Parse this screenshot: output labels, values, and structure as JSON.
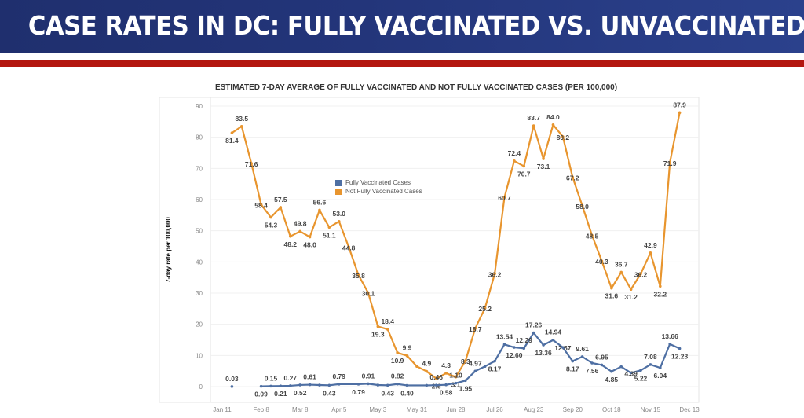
{
  "banner": {
    "title": "CASE RATES IN DC: FULLY VACCINATED VS. UNVACCINATED",
    "colors": {
      "banner": "#23357a",
      "stripe": "#b3160f"
    }
  },
  "chart_data": {
    "type": "line",
    "title": "ESTIMATED 7-DAY AVERAGE OF FULLY VACCINATED AND NOT FULLY VACCINATED CASES (PER 100,000)",
    "xlabel": "",
    "ylabel": "7-day rate per 100,000",
    "ylim": [
      0,
      90
    ],
    "yticks": [
      0,
      10,
      20,
      30,
      40,
      50,
      60,
      70,
      80,
      90
    ],
    "xtick_labels": [
      "Jan 11",
      "Feb 8",
      "Mar 8",
      "Apr 5",
      "May 3",
      "May 31",
      "Jun 28",
      "Jul 26",
      "Aug 23",
      "Sep 20",
      "Oct 18",
      "Nov 15",
      "Dec 13"
    ],
    "x_unit": "weeks since Jan 11",
    "grid": true,
    "legend": [
      {
        "name": "Fully Vaccinated Cases",
        "color": "#4e6fa3"
      },
      {
        "name": "Not Fully Vaccinated Cases",
        "color": "#e8952e"
      }
    ],
    "legend_position": "upper-middle",
    "series": [
      {
        "name": "Not Fully Vaccinated Cases",
        "color": "#e8952e",
        "points": [
          {
            "x": 1,
            "y": 81.4,
            "label": "81.4",
            "pos": "below"
          },
          {
            "x": 2,
            "y": 83.5,
            "label": "83.5",
            "pos": "above"
          },
          {
            "x": 3,
            "y": 71.6,
            "label": "71.6",
            "pos": "on"
          },
          {
            "x": 4,
            "y": 58.4,
            "label": "58.4",
            "pos": "on"
          },
          {
            "x": 5,
            "y": 54.3,
            "label": "54.3",
            "pos": "below"
          },
          {
            "x": 6,
            "y": 57.5,
            "label": "57.5",
            "pos": "above"
          },
          {
            "x": 7,
            "y": 48.2,
            "label": "48.2",
            "pos": "below"
          },
          {
            "x": 8,
            "y": 49.8,
            "label": "49.8",
            "pos": "above"
          },
          {
            "x": 9,
            "y": 48.0,
            "label": "48.0",
            "pos": "below"
          },
          {
            "x": 10,
            "y": 56.6,
            "label": "56.6",
            "pos": "above"
          },
          {
            "x": 11,
            "y": 51.1,
            "label": "51.1",
            "pos": "below"
          },
          {
            "x": 12,
            "y": 53.0,
            "label": "53.0",
            "pos": "above"
          },
          {
            "x": 13,
            "y": 44.8,
            "label": "44.8",
            "pos": "on"
          },
          {
            "x": 14,
            "y": 35.8,
            "label": "35.8",
            "pos": "on"
          },
          {
            "x": 15,
            "y": 30.1,
            "label": "30.1",
            "pos": "on"
          },
          {
            "x": 16,
            "y": 19.3,
            "label": "19.3",
            "pos": "below"
          },
          {
            "x": 17,
            "y": 18.4,
            "label": "18.4",
            "pos": "above"
          },
          {
            "x": 18,
            "y": 10.9,
            "label": "10.9",
            "pos": "below"
          },
          {
            "x": 19,
            "y": 9.9,
            "label": "9.9",
            "pos": "above"
          },
          {
            "x": 20,
            "y": 6.5,
            "label": "",
            "pos": "none"
          },
          {
            "x": 21,
            "y": 4.9,
            "label": "4.9",
            "pos": "above"
          },
          {
            "x": 22,
            "y": 2.6,
            "label": "2.6",
            "pos": "below"
          },
          {
            "x": 23,
            "y": 4.3,
            "label": "4.3",
            "pos": "above"
          },
          {
            "x": 24,
            "y": 3.1,
            "label": "3.1",
            "pos": "below"
          },
          {
            "x": 25,
            "y": 8.3,
            "label": "8.3",
            "pos": "on"
          },
          {
            "x": 26,
            "y": 18.7,
            "label": "18.7",
            "pos": "on"
          },
          {
            "x": 27,
            "y": 25.2,
            "label": "25.2",
            "pos": "on"
          },
          {
            "x": 28,
            "y": 36.2,
            "label": "36.2",
            "pos": "on"
          },
          {
            "x": 29,
            "y": 60.7,
            "label": "60.7",
            "pos": "on"
          },
          {
            "x": 30,
            "y": 72.4,
            "label": "72.4",
            "pos": "above"
          },
          {
            "x": 31,
            "y": 70.7,
            "label": "70.7",
            "pos": "below"
          },
          {
            "x": 32,
            "y": 83.7,
            "label": "83.7",
            "pos": "above"
          },
          {
            "x": 33,
            "y": 73.1,
            "label": "73.1",
            "pos": "below"
          },
          {
            "x": 34,
            "y": 84.0,
            "label": "84.0",
            "pos": "above"
          },
          {
            "x": 35,
            "y": 80.2,
            "label": "80.2",
            "pos": "on"
          },
          {
            "x": 36,
            "y": 67.2,
            "label": "67.2",
            "pos": "on"
          },
          {
            "x": 37,
            "y": 58.0,
            "label": "58.0",
            "pos": "on"
          },
          {
            "x": 38,
            "y": 48.5,
            "label": "48.5",
            "pos": "on"
          },
          {
            "x": 39,
            "y": 40.3,
            "label": "40.3",
            "pos": "on"
          },
          {
            "x": 40,
            "y": 31.6,
            "label": "31.6",
            "pos": "below"
          },
          {
            "x": 41,
            "y": 36.7,
            "label": "36.7",
            "pos": "above"
          },
          {
            "x": 42,
            "y": 31.2,
            "label": "31.2",
            "pos": "below"
          },
          {
            "x": 43,
            "y": 36.2,
            "label": "36.2",
            "pos": "on"
          },
          {
            "x": 44,
            "y": 42.9,
            "label": "42.9",
            "pos": "above"
          },
          {
            "x": 45,
            "y": 32.2,
            "label": "32.2",
            "pos": "below"
          },
          {
            "x": 46,
            "y": 71.9,
            "label": "71.9",
            "pos": "on"
          },
          {
            "x": 47,
            "y": 87.9,
            "label": "87.9",
            "pos": "above"
          }
        ]
      },
      {
        "name": "Fully Vaccinated Cases",
        "color": "#4e6fa3",
        "points": [
          {
            "x": 1,
            "y": 0.03,
            "label": "0.03",
            "pos": "above",
            "isolated": true
          },
          {
            "x": 4,
            "y": 0.09,
            "label": "0.09",
            "pos": "below"
          },
          {
            "x": 5,
            "y": 0.15,
            "label": "0.15",
            "pos": "above"
          },
          {
            "x": 6,
            "y": 0.21,
            "label": "0.21",
            "pos": "below"
          },
          {
            "x": 7,
            "y": 0.27,
            "label": "0.27",
            "pos": "above"
          },
          {
            "x": 8,
            "y": 0.52,
            "label": "0.52",
            "pos": "below"
          },
          {
            "x": 9,
            "y": 0.61,
            "label": "0.61",
            "pos": "above"
          },
          {
            "x": 10,
            "y": 0.5,
            "label": "",
            "pos": "none"
          },
          {
            "x": 11,
            "y": 0.43,
            "label": "0.43",
            "pos": "below"
          },
          {
            "x": 12,
            "y": 0.79,
            "label": "0.79",
            "pos": "above"
          },
          {
            "x": 14,
            "y": 0.79,
            "label": "0.79",
            "pos": "below"
          },
          {
            "x": 15,
            "y": 0.91,
            "label": "0.91",
            "pos": "above"
          },
          {
            "x": 16,
            "y": 0.5,
            "label": "",
            "pos": "none"
          },
          {
            "x": 17,
            "y": 0.43,
            "label": "0.43",
            "pos": "below"
          },
          {
            "x": 18,
            "y": 0.82,
            "label": "0.82",
            "pos": "above"
          },
          {
            "x": 19,
            "y": 0.4,
            "label": "0.40",
            "pos": "below"
          },
          {
            "x": 21,
            "y": 0.4,
            "label": "",
            "pos": "none"
          },
          {
            "x": 22,
            "y": 0.46,
            "label": "0.46",
            "pos": "above"
          },
          {
            "x": 23,
            "y": 0.58,
            "label": "0.58",
            "pos": "below"
          },
          {
            "x": 24,
            "y": 1.1,
            "label": "1.10",
            "pos": "above"
          },
          {
            "x": 25,
            "y": 1.95,
            "label": "1.95",
            "pos": "below"
          },
          {
            "x": 26,
            "y": 4.97,
            "label": "4.97",
            "pos": "above"
          },
          {
            "x": 27,
            "y": 6.5,
            "label": "",
            "pos": "none"
          },
          {
            "x": 28,
            "y": 8.17,
            "label": "8.17",
            "pos": "below"
          },
          {
            "x": 29,
            "y": 13.54,
            "label": "13.54",
            "pos": "above"
          },
          {
            "x": 30,
            "y": 12.6,
            "label": "12.60",
            "pos": "below"
          },
          {
            "x": 31,
            "y": 12.29,
            "label": "12.29",
            "pos": "above"
          },
          {
            "x": 32,
            "y": 17.26,
            "label": "17.26",
            "pos": "above"
          },
          {
            "x": 33,
            "y": 13.36,
            "label": "13.36",
            "pos": "below"
          },
          {
            "x": 34,
            "y": 14.94,
            "label": "14.94",
            "pos": "above"
          },
          {
            "x": 35,
            "y": 12.57,
            "label": "12.57",
            "pos": "on"
          },
          {
            "x": 36,
            "y": 8.17,
            "label": "8.17",
            "pos": "below"
          },
          {
            "x": 37,
            "y": 9.61,
            "label": "9.61",
            "pos": "above"
          },
          {
            "x": 38,
            "y": 7.56,
            "label": "7.56",
            "pos": "below"
          },
          {
            "x": 39,
            "y": 6.95,
            "label": "6.95",
            "pos": "above"
          },
          {
            "x": 40,
            "y": 4.85,
            "label": "4.85",
            "pos": "below"
          },
          {
            "x": 41,
            "y": 6.39,
            "label": "",
            "pos": "none"
          },
          {
            "x": 42,
            "y": 4.39,
            "label": "4.39",
            "pos": "on"
          },
          {
            "x": 43,
            "y": 5.22,
            "label": "5.22",
            "pos": "below"
          },
          {
            "x": 44,
            "y": 7.08,
            "label": "7.08",
            "pos": "above"
          },
          {
            "x": 45,
            "y": 6.04,
            "label": "6.04",
            "pos": "below"
          },
          {
            "x": 46,
            "y": 13.66,
            "label": "13.66",
            "pos": "above"
          },
          {
            "x": 47,
            "y": 12.23,
            "label": "12.23",
            "pos": "below"
          }
        ]
      }
    ]
  }
}
